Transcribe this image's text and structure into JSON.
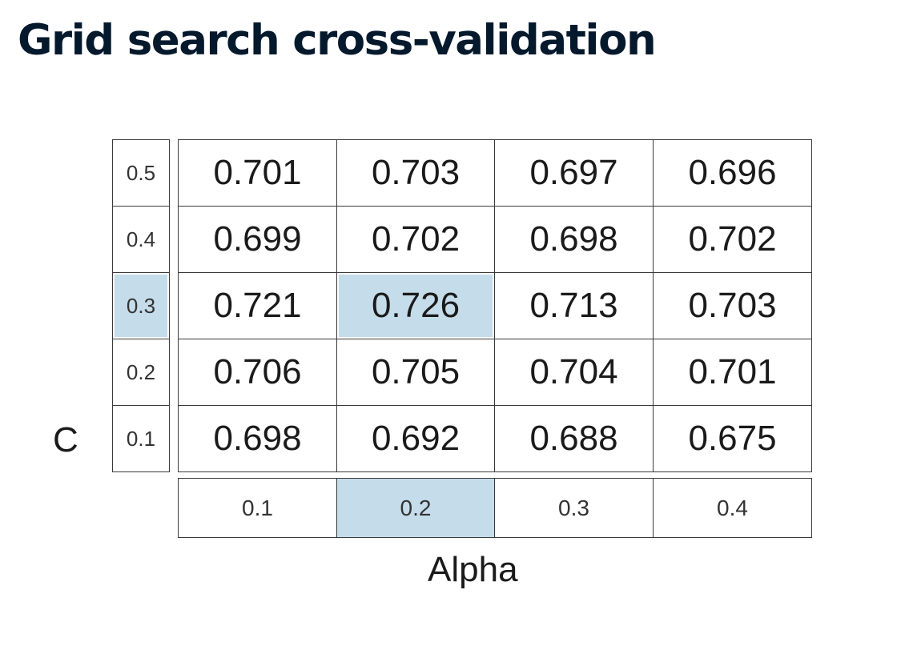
{
  "title": "Grid search cross-validation",
  "row_axis_label": "C",
  "col_axis_label": "Alpha",
  "row_labels": [
    "0.5",
    "0.4",
    "0.3",
    "0.2",
    "0.1"
  ],
  "col_labels": [
    "0.1",
    "0.2",
    "0.3",
    "0.4"
  ],
  "values": [
    [
      "0.701",
      "0.703",
      "0.697",
      "0.696"
    ],
    [
      "0.699",
      "0.702",
      "0.698",
      "0.702"
    ],
    [
      "0.721",
      "0.726",
      "0.713",
      "0.703"
    ],
    [
      "0.706",
      "0.705",
      "0.704",
      "0.701"
    ],
    [
      "0.698",
      "0.692",
      "0.688",
      "0.675"
    ]
  ],
  "highlight": {
    "row_label": "0.3",
    "col_label": "0.2",
    "color": "#c5dcea"
  }
}
